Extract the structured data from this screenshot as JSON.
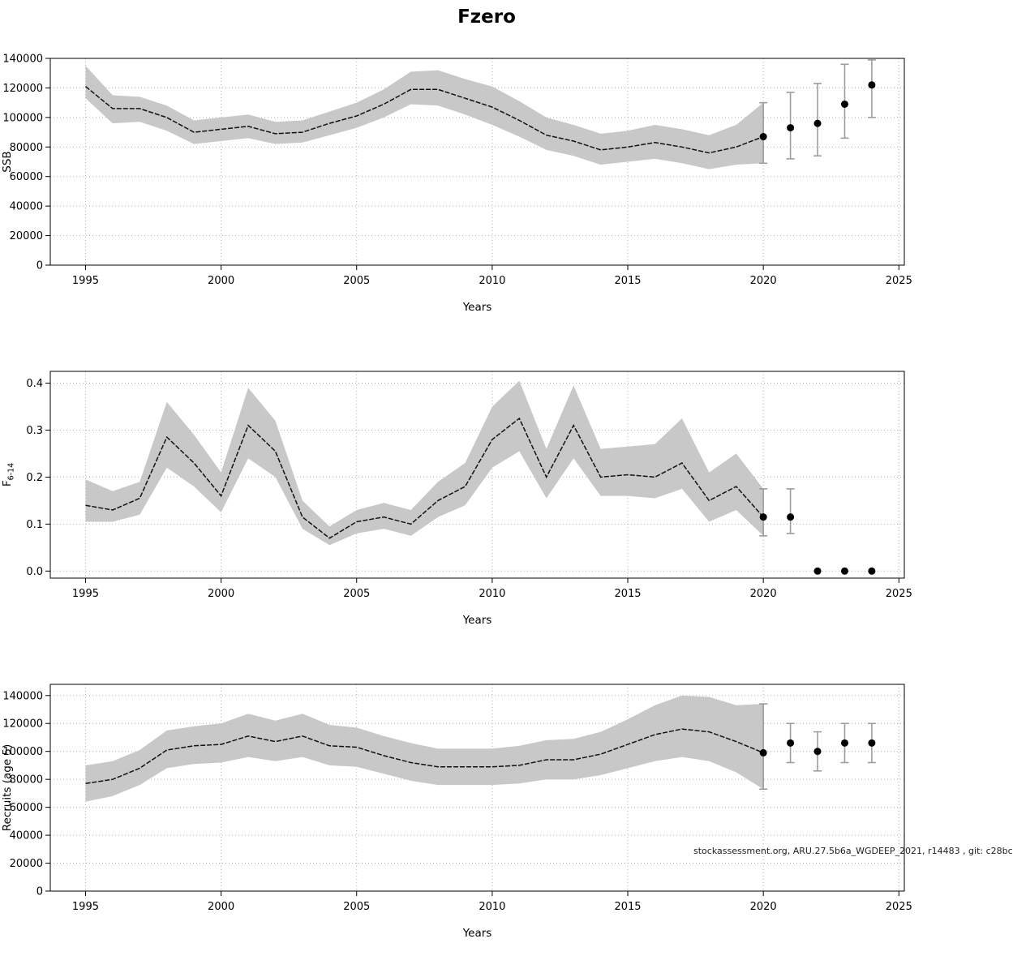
{
  "header": {
    "title": "Fzero"
  },
  "footnote": "stockassessment.org, ARU.27.5b6a_WGDEEP_2021, r14483 , git: c28bc",
  "colors": {
    "band": "#c8c8c8",
    "line": "#111111",
    "error_bar": "#9d9d9d",
    "point": "#000000"
  },
  "chart_data": [
    {
      "type": "line",
      "name": "ssb",
      "title": "",
      "xlabel": "Years",
      "ylabel": "SSB",
      "xlim": [
        1993.7,
        2025.2
      ],
      "ylim": [
        0,
        140000
      ],
      "xticks": [
        1995,
        2000,
        2005,
        2010,
        2015,
        2020,
        2025
      ],
      "yticks": [
        0,
        20000,
        40000,
        60000,
        80000,
        100000,
        120000,
        140000
      ],
      "ydecimals": 0,
      "x": [
        1995,
        1996,
        1997,
        1998,
        1999,
        2000,
        2001,
        2002,
        2003,
        2004,
        2005,
        2006,
        2007,
        2008,
        2009,
        2010,
        2011,
        2012,
        2013,
        2014,
        2015,
        2016,
        2017,
        2018,
        2019,
        2020
      ],
      "estimate": [
        121000,
        106000,
        106000,
        100000,
        90000,
        92000,
        94000,
        89000,
        90000,
        96000,
        101000,
        109000,
        119000,
        119000,
        113000,
        107000,
        98000,
        88000,
        84000,
        78000,
        80000,
        83000,
        80000,
        76000,
        80000,
        87000
      ],
      "lower": [
        113000,
        96000,
        97000,
        91000,
        82000,
        84000,
        86000,
        82000,
        83000,
        88000,
        93000,
        100000,
        109000,
        108000,
        102000,
        95000,
        87000,
        78000,
        74000,
        68000,
        70000,
        72000,
        69000,
        65000,
        68000,
        69000
      ],
      "upper": [
        135000,
        115000,
        114000,
        108000,
        98000,
        100000,
        102000,
        97000,
        98000,
        104000,
        110000,
        119000,
        131000,
        132000,
        126000,
        121000,
        111000,
        100000,
        95000,
        89000,
        91000,
        95000,
        92000,
        88000,
        95000,
        110000
      ],
      "forecast": {
        "x": [
          2020,
          2021,
          2022,
          2023,
          2024
        ],
        "y": [
          87000,
          93000,
          96000,
          109000,
          122000
        ],
        "lower": [
          69000,
          72000,
          74000,
          86000,
          100000
        ],
        "upper": [
          110000,
          117000,
          123000,
          136000,
          139000
        ]
      }
    },
    {
      "type": "line",
      "name": "fishing-mortality",
      "title": "",
      "xlabel": "Years",
      "ylabel": "F",
      "ylabel_sub": "6-14",
      "xlim": [
        1993.7,
        2025.2
      ],
      "ylim": [
        -0.015,
        0.425
      ],
      "xticks": [
        1995,
        2000,
        2005,
        2010,
        2015,
        2020,
        2025
      ],
      "yticks": [
        0,
        0.1,
        0.2,
        0.3,
        0.4
      ],
      "ydecimals": 1,
      "x": [
        1995,
        1996,
        1997,
        1998,
        1999,
        2000,
        2001,
        2002,
        2003,
        2004,
        2005,
        2006,
        2007,
        2008,
        2009,
        2010,
        2011,
        2012,
        2013,
        2014,
        2015,
        2016,
        2017,
        2018,
        2019,
        2020
      ],
      "estimate": [
        0.14,
        0.13,
        0.155,
        0.285,
        0.23,
        0.16,
        0.31,
        0.255,
        0.115,
        0.07,
        0.105,
        0.115,
        0.1,
        0.15,
        0.18,
        0.28,
        0.325,
        0.2,
        0.31,
        0.2,
        0.205,
        0.2,
        0.23,
        0.15,
        0.18,
        0.115
      ],
      "lower": [
        0.105,
        0.105,
        0.12,
        0.22,
        0.18,
        0.125,
        0.24,
        0.2,
        0.09,
        0.055,
        0.08,
        0.09,
        0.075,
        0.115,
        0.14,
        0.22,
        0.255,
        0.155,
        0.24,
        0.16,
        0.16,
        0.155,
        0.175,
        0.105,
        0.13,
        0.075
      ],
      "upper": [
        0.195,
        0.17,
        0.19,
        0.36,
        0.29,
        0.21,
        0.39,
        0.32,
        0.15,
        0.095,
        0.13,
        0.145,
        0.13,
        0.19,
        0.23,
        0.35,
        0.405,
        0.26,
        0.395,
        0.26,
        0.265,
        0.27,
        0.325,
        0.21,
        0.25,
        0.175
      ],
      "forecast": {
        "x": [
          2020,
          2021,
          2022,
          2023,
          2024
        ],
        "y": [
          0.115,
          0.115,
          0.0,
          0.0,
          0.0
        ],
        "lower": [
          0.075,
          0.08,
          0.0,
          0.0,
          0.0
        ],
        "upper": [
          0.175,
          0.175,
          0.0,
          0.0,
          0.0
        ]
      }
    },
    {
      "type": "line",
      "name": "recruits",
      "title": "",
      "xlabel": "Years",
      "ylabel": "Recruits (age 5)",
      "xlim": [
        1993.7,
        2025.2
      ],
      "ylim": [
        0,
        148000
      ],
      "xticks": [
        1995,
        2000,
        2005,
        2010,
        2015,
        2020,
        2025
      ],
      "yticks": [
        0,
        20000,
        40000,
        60000,
        80000,
        100000,
        120000,
        140000
      ],
      "ydecimals": 0,
      "x": [
        1995,
        1996,
        1997,
        1998,
        1999,
        2000,
        2001,
        2002,
        2003,
        2004,
        2005,
        2006,
        2007,
        2008,
        2009,
        2010,
        2011,
        2012,
        2013,
        2014,
        2015,
        2016,
        2017,
        2018,
        2019,
        2020
      ],
      "estimate": [
        77000,
        80000,
        88000,
        101000,
        104000,
        105000,
        111000,
        107000,
        111000,
        104000,
        103000,
        97000,
        92000,
        89000,
        89000,
        89000,
        90000,
        94000,
        94000,
        98000,
        105000,
        112000,
        116000,
        114000,
        107000,
        99000
      ],
      "lower": [
        64000,
        68000,
        76000,
        88000,
        91000,
        92000,
        96000,
        93000,
        96000,
        90000,
        89000,
        84000,
        79000,
        76000,
        76000,
        76000,
        77000,
        80000,
        80000,
        83000,
        88000,
        93000,
        96000,
        93000,
        85000,
        73000
      ],
      "upper": [
        90000,
        93000,
        101000,
        115000,
        118000,
        120000,
        127000,
        122000,
        127000,
        119000,
        117000,
        111000,
        106000,
        102000,
        102000,
        102000,
        104000,
        108000,
        109000,
        114000,
        123000,
        133000,
        140000,
        139000,
        133000,
        134000
      ],
      "forecast": {
        "x": [
          2020,
          2021,
          2022,
          2023,
          2024
        ],
        "y": [
          99000,
          106000,
          100000,
          106000,
          106000
        ],
        "lower": [
          73000,
          92000,
          86000,
          92000,
          92000
        ],
        "upper": [
          134000,
          120000,
          114000,
          120000,
          120000
        ]
      }
    }
  ]
}
